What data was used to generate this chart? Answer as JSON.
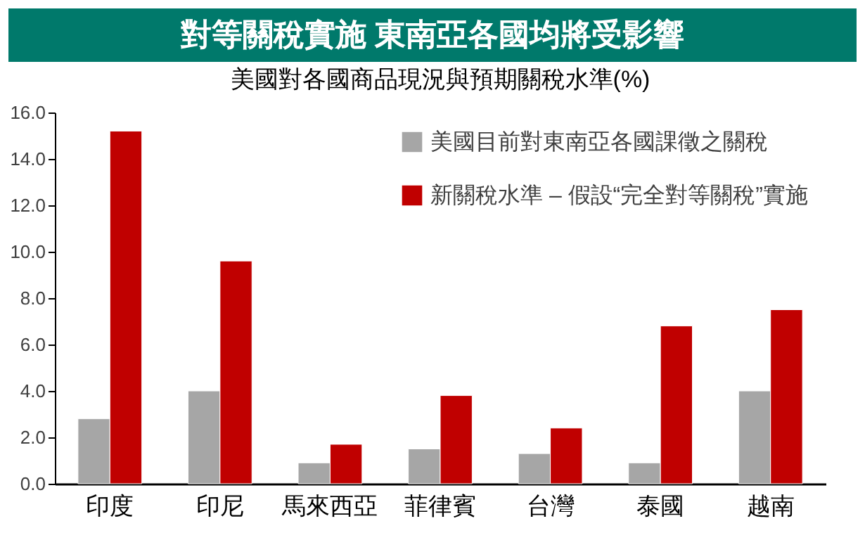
{
  "chart_data": {
    "type": "bar",
    "title": "對等關稅實施 東南亞各國均將受影響",
    "subtitle": "美國對各國商品現況與預期關稅水準(%)",
    "categories": [
      "印度",
      "印尼",
      "馬來西亞",
      "菲律賓",
      "台灣",
      "泰國",
      "越南"
    ],
    "series": [
      {
        "name": "美國目前對東南亞各國課徵之關稅",
        "color": "#a6a6a6",
        "values": [
          2.8,
          4.0,
          0.9,
          1.5,
          1.3,
          0.9,
          4.0
        ]
      },
      {
        "name": "新關稅水準 – 假設“完全對等關稅”實施",
        "color": "#c00000",
        "values": [
          15.2,
          9.6,
          1.7,
          3.8,
          2.4,
          6.8,
          7.5
        ]
      }
    ],
    "ylim": [
      0,
      16
    ],
    "yticks": [
      {
        "value": 0,
        "label": "0.0"
      },
      {
        "value": 2,
        "label": "2.0"
      },
      {
        "value": 4,
        "label": "4.0"
      },
      {
        "value": 6,
        "label": "6.0"
      },
      {
        "value": 8,
        "label": "8.0"
      },
      {
        "value": 10,
        "label": "10.0"
      },
      {
        "value": 12,
        "label": "12.0"
      },
      {
        "value": 14,
        "label": "14.0"
      },
      {
        "value": 16,
        "label": "16.0"
      }
    ],
    "grid": false,
    "legend": "top right"
  }
}
